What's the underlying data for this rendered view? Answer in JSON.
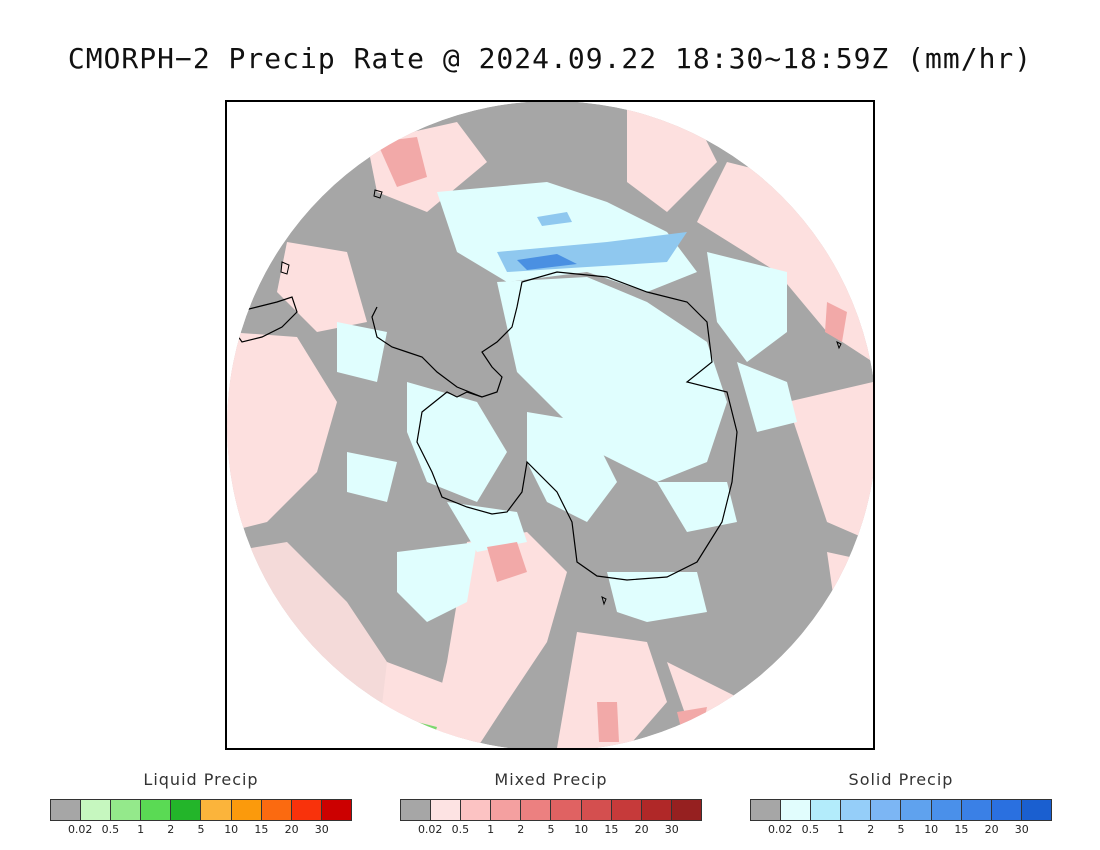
{
  "title": "CMORPH−2 Precip Rate @ 2024.09.22 18:30~18:59Z (mm/hr)",
  "map": {
    "projection": "south-polar-stereographic",
    "colors": {
      "no_precip": "#a6a6a6",
      "mixed_light": "#fde0df",
      "mixed_mid": "#f2a9a8",
      "mixed_heavy": "#e57f7e",
      "solid_light": "#e0fefe",
      "solid_mid": "#8fc8ef",
      "solid_heavy": "#4a90e2",
      "liquid_light": "#7bd86e",
      "coastline": "#000000"
    }
  },
  "legends": [
    {
      "title": "Liquid Precip",
      "colors": [
        "#a6a6a6",
        "#c6f7bf",
        "#94e98b",
        "#5ada54",
        "#23b52a",
        "#fbb43b",
        "#fb9a0c",
        "#fb6a10",
        "#f9320b",
        "#cc0000"
      ],
      "ticks": [
        "0.02",
        "0.5",
        "1",
        "2",
        "5",
        "10",
        "15",
        "20",
        "30"
      ]
    },
    {
      "title": "Mixed Precip",
      "colors": [
        "#a6a6a6",
        "#fde3e3",
        "#fcc3c3",
        "#f4a0a0",
        "#ec8080",
        "#e06262",
        "#d44f4f",
        "#c63a3a",
        "#b02828",
        "#962020"
      ],
      "ticks": [
        "0.02",
        "0.5",
        "1",
        "2",
        "5",
        "10",
        "15",
        "20",
        "30"
      ]
    },
    {
      "title": "Solid Precip",
      "colors": [
        "#a6a6a6",
        "#e1fdfd",
        "#b3ecfb",
        "#95cef9",
        "#7cb6f4",
        "#5fa2ee",
        "#4a90ea",
        "#3a80e6",
        "#2a70e0",
        "#1a5fd0"
      ],
      "ticks": [
        "0.02",
        "0.5",
        "1",
        "2",
        "5",
        "10",
        "15",
        "20",
        "30"
      ]
    }
  ]
}
